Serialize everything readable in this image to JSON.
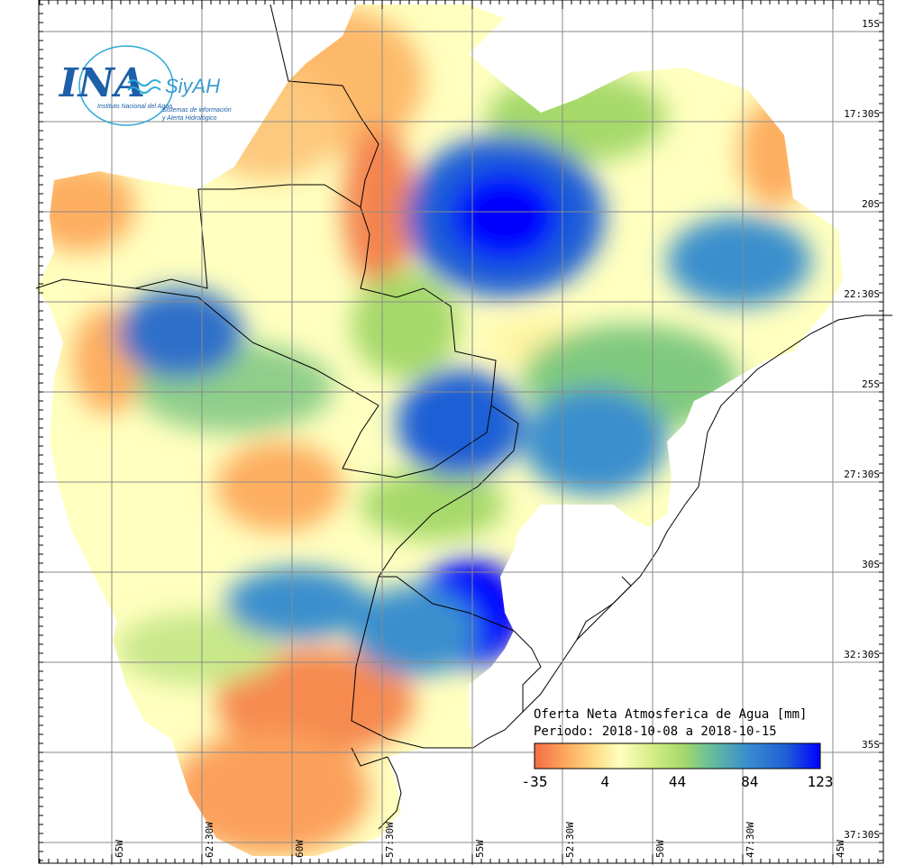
{
  "logo": {
    "wordmark": "INA",
    "subtitle": "Instituto Nacional del Agua",
    "system_name": "SiyAH",
    "system_desc_1": "Sistemas de información",
    "system_desc_2": "y Alerta Hidrológico",
    "colors": {
      "ina": "#1d5fa8",
      "siyah": "#3d9ad1",
      "wave": "#2aa9d8"
    }
  },
  "legend": {
    "title_line_1": "Oferta Neta Atmosferica de Agua [mm]",
    "title_line_2": "Periodo: 2018-10-08 a 2018-10-15",
    "ticks": [
      "-35",
      "4",
      "44",
      "84",
      "123"
    ],
    "tick_values": [
      -35,
      4,
      44,
      84,
      123
    ],
    "colorscale": [
      "#f46d43",
      "#fdae61",
      "#fee08b",
      "#ffffbf",
      "#d9ef8b",
      "#a6d96a",
      "#66bd9c",
      "#3a8fcd",
      "#1f5fd6",
      "#0000ff"
    ]
  },
  "lat_labels": [
    "15S",
    "17:30S",
    "20S",
    "22:30S",
    "25S",
    "27:30S",
    "30S",
    "32:30S",
    "35S",
    "37:30S"
  ],
  "lon_labels": [
    "65W",
    "62:30W",
    "60W",
    "57:30W",
    "55W",
    "52:30W",
    "50W",
    "47:30W",
    "45W"
  ]
}
